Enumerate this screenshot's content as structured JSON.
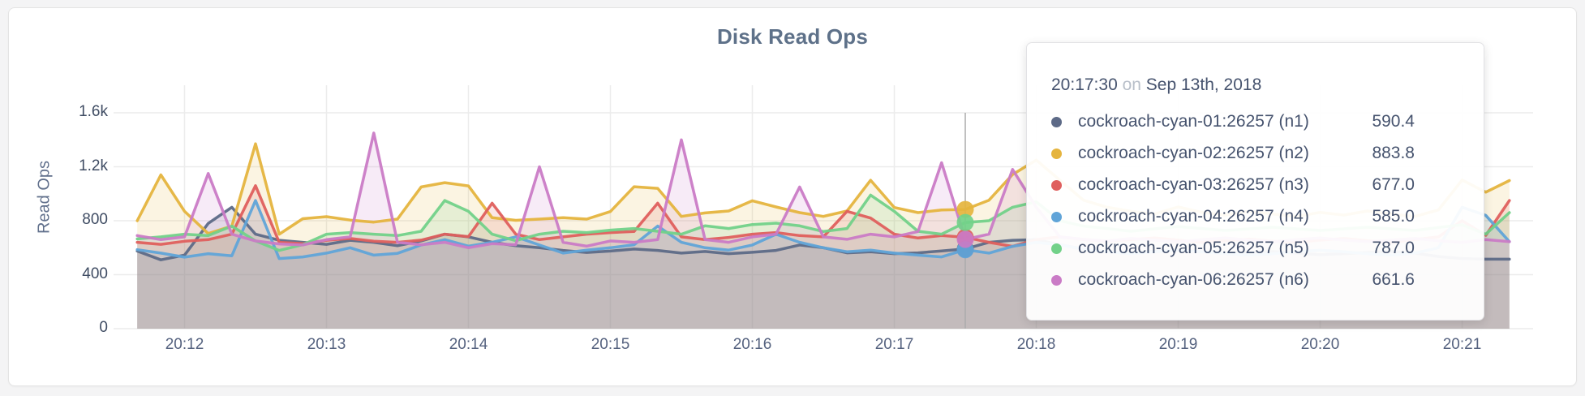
{
  "panel": {
    "title": "Disk Read Ops"
  },
  "colors": {
    "grid": "#ececec",
    "hover_line": "#ababab",
    "title_text": "#5e7189",
    "axis_text": "#55627f",
    "card_border": "#e4e4e4",
    "page_background": "#f4f4f5"
  },
  "tooltip": {
    "time": "20:17:30",
    "conjunction": "on",
    "date": "Sep 13th, 2018",
    "rows": [
      {
        "label": "cockroach-cyan-01:26257 (n1)",
        "value": "590.4",
        "color": "#5d6a87"
      },
      {
        "label": "cockroach-cyan-02:26257 (n2)",
        "value": "883.8",
        "color": "#e5b43e"
      },
      {
        "label": "cockroach-cyan-03:26257 (n3)",
        "value": "677.0",
        "color": "#df5f5d"
      },
      {
        "label": "cockroach-cyan-04:26257 (n4)",
        "value": "585.0",
        "color": "#60a4d8"
      },
      {
        "label": "cockroach-cyan-05:26257 (n5)",
        "value": "787.0",
        "color": "#72d189"
      },
      {
        "label": "cockroach-cyan-06:26257 (n6)",
        "value": "661.6",
        "color": "#ca7bc6"
      }
    ]
  },
  "chart_data": {
    "type": "line",
    "title": "Disk Read Ops",
    "xlabel": "",
    "ylabel": "Read Ops",
    "ylim": [
      0,
      1600
    ],
    "grid": true,
    "legend_position": "tooltip",
    "x_start": "20:11:40",
    "x_end": "20:21:20",
    "x_step_seconds": 10,
    "x_axis_ticks": [
      "20:12",
      "20:13",
      "20:14",
      "20:15",
      "20:16",
      "20:17",
      "20:18",
      "20:19",
      "20:20",
      "20:21"
    ],
    "y_axis_ticks": [
      {
        "label": "1.6k",
        "value": 1600
      },
      {
        "label": "1.2k",
        "value": 1200
      },
      {
        "label": "800",
        "value": 800
      },
      {
        "label": "400",
        "value": 400
      },
      {
        "label": "0",
        "value": 0
      }
    ],
    "hover": {
      "index": 35,
      "time": "20:17:30",
      "date": "Sep 13th, 2018"
    },
    "series": [
      {
        "name": "cockroach-cyan-01:26257 (n1)",
        "node": "n1",
        "color": "#5d6a87",
        "values": [
          575,
          510,
          545,
          780,
          900,
          700,
          655,
          640,
          625,
          655,
          640,
          615,
          650,
          700,
          680,
          640,
          615,
          600,
          580,
          565,
          575,
          590,
          580,
          560,
          572,
          556,
          566,
          580,
          620,
          600,
          562,
          570,
          556,
          562,
          576,
          590.4,
          640,
          655,
          660,
          622,
          590,
          570,
          560,
          575,
          585,
          570,
          558,
          565,
          572,
          560,
          548,
          556,
          565,
          572,
          560,
          535,
          520,
          515,
          515
        ]
      },
      {
        "name": "cockroach-cyan-02:26257 (n2)",
        "node": "n2",
        "color": "#e5b43e",
        "values": [
          800,
          1140,
          870,
          705,
          760,
          1370,
          700,
          815,
          830,
          805,
          790,
          812,
          1050,
          1082,
          1058,
          822,
          803,
          812,
          822,
          812,
          868,
          1052,
          1040,
          832,
          858,
          872,
          948,
          902,
          860,
          832,
          872,
          1100,
          898,
          860,
          880,
          883.8,
          952,
          1142,
          1250,
          1100,
          952,
          900,
          870,
          850,
          902,
          862,
          842,
          870,
          850,
          832,
          862,
          842,
          872,
          850,
          832,
          880,
          1102,
          1012,
          1098
        ]
      },
      {
        "name": "cockroach-cyan-03:26257 (n3)",
        "node": "n3",
        "color": "#df5f5d",
        "values": [
          640,
          625,
          648,
          660,
          700,
          1060,
          640,
          630,
          655,
          668,
          648,
          640,
          656,
          700,
          682,
          930,
          700,
          660,
          680,
          700,
          712,
          720,
          930,
          680,
          660,
          676,
          700,
          712,
          690,
          680,
          870,
          820,
          700,
          672,
          690,
          677,
          640,
          610,
          660,
          680,
          660,
          648,
          660,
          672,
          656,
          640,
          652,
          664,
          648,
          640,
          656,
          668,
          652,
          640,
          660,
          680,
          800,
          692,
          950
        ]
      },
      {
        "name": "cockroach-cyan-04:26257 (n4)",
        "node": "n4",
        "color": "#60a4d8",
        "values": [
          585,
          560,
          530,
          556,
          540,
          950,
          520,
          532,
          560,
          600,
          545,
          558,
          620,
          660,
          612,
          640,
          680,
          620,
          560,
          582,
          600,
          622,
          760,
          640,
          600,
          582,
          620,
          700,
          640,
          600,
          570,
          582,
          560,
          545,
          532,
          585,
          560,
          610,
          640,
          620,
          590,
          570,
          556,
          570,
          582,
          570,
          556,
          545,
          556,
          570,
          582,
          570,
          556,
          545,
          560,
          600,
          900,
          840,
          645
        ]
      },
      {
        "name": "cockroach-cyan-05:26257 (n5)",
        "node": "n5",
        "color": "#72d189",
        "values": [
          665,
          680,
          700,
          690,
          760,
          650,
          580,
          622,
          700,
          712,
          700,
          690,
          722,
          950,
          870,
          700,
          652,
          700,
          722,
          712,
          730,
          742,
          722,
          700,
          762,
          742,
          772,
          782,
          762,
          720,
          742,
          990,
          870,
          722,
          700,
          787,
          800,
          900,
          940,
          800,
          760,
          742,
          722,
          740,
          756,
          742,
          728,
          740,
          752,
          740,
          728,
          740,
          752,
          740,
          728,
          750,
          770,
          700,
          860
        ]
      },
      {
        "name": "cockroach-cyan-06:26257 (n6)",
        "node": "n6",
        "color": "#ca7bc6",
        "values": [
          690,
          660,
          680,
          1150,
          700,
          650,
          628,
          620,
          660,
          680,
          1450,
          640,
          622,
          640,
          600,
          630,
          622,
          1200,
          640,
          612,
          650,
          640,
          660,
          1400,
          660,
          640,
          680,
          700,
          1050,
          680,
          662,
          700,
          680,
          720,
          1230,
          661.6,
          700,
          1180,
          900,
          680,
          662,
          650,
          668,
          656,
          644,
          660,
          672,
          656,
          644,
          660,
          672,
          656,
          644,
          656,
          668,
          652,
          640,
          660,
          645
        ]
      }
    ]
  }
}
